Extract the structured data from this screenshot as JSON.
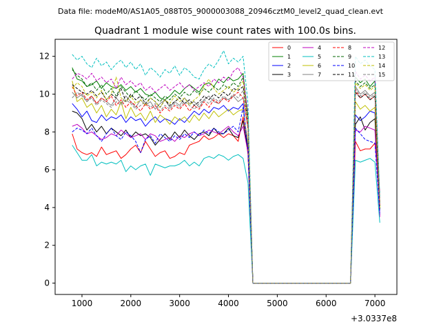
{
  "suptitle": "Data file: modeM0/AS1A05_088T05_9000003088_20946cztM0_level2_quad_clean.evt",
  "chart_data": {
    "type": "line",
    "title": "Quadrant 1 module wise count rates with 100.0s bins.",
    "xlabel": "",
    "ylabel": "",
    "offset_text": "+3.0337e8",
    "xlim": [
      450,
      7450
    ],
    "ylim": [
      -0.6,
      12.9
    ],
    "xticks": [
      1000,
      2000,
      3000,
      4000,
      5000,
      6000,
      7000
    ],
    "xtick_labels": [
      "1000",
      "2000",
      "3000",
      "4000",
      "5000",
      "6000",
      "7000"
    ],
    "yticks": [
      0,
      2,
      4,
      6,
      8,
      10,
      12
    ],
    "ytick_labels": [
      "0",
      "2",
      "4",
      "6",
      "8",
      "10",
      "12"
    ],
    "grid": false,
    "legend_position": "top-right",
    "x": [
      800,
      900,
      1000,
      1100,
      1200,
      1300,
      1400,
      1500,
      1600,
      1700,
      1800,
      1900,
      2000,
      2100,
      2200,
      2300,
      2400,
      2500,
      2600,
      2700,
      2800,
      2900,
      3000,
      3100,
      3200,
      3300,
      3400,
      3500,
      3600,
      3700,
      3800,
      3900,
      4000,
      4100,
      4200,
      4300,
      4400,
      4500,
      4600,
      6500,
      6600,
      6700,
      6800,
      6900,
      7000,
      7100
    ],
    "series": [
      {
        "name": "0",
        "color": "#ff0000",
        "dash": "solid",
        "values": [
          7.9,
          7.1,
          6.9,
          6.8,
          6.9,
          6.7,
          7.2,
          6.8,
          6.9,
          7.0,
          6.6,
          6.8,
          7.1,
          7.3,
          6.9,
          7.5,
          7.1,
          6.7,
          6.9,
          7.0,
          6.6,
          6.7,
          6.9,
          6.8,
          7.3,
          7.4,
          7.5,
          7.8,
          7.6,
          7.7,
          7.9,
          7.7,
          7.9,
          7.8,
          7.5,
          8.8,
          6.8,
          0.0,
          0.0,
          0.0,
          7.5,
          7.0,
          7.1,
          7.1,
          7.4,
          4.8
        ]
      },
      {
        "name": "1",
        "color": "#008000",
        "dash": "solid",
        "values": [
          11.4,
          10.8,
          10.7,
          10.4,
          10.5,
          10.7,
          10.3,
          10.6,
          10.4,
          10.3,
          10.5,
          10.2,
          10.4,
          10.1,
          10.3,
          10.0,
          9.9,
          10.1,
          9.8,
          9.7,
          9.9,
          10.2,
          10.0,
          10.3,
          10.5,
          10.3,
          10.1,
          10.5,
          10.6,
          10.4,
          10.8,
          10.6,
          10.9,
          10.7,
          10.8,
          11.1,
          8.7,
          0.0,
          0.0,
          0.0,
          10.9,
          10.6,
          10.8,
          10.4,
          10.7,
          4.0
        ]
      },
      {
        "name": "2",
        "color": "#0000ff",
        "dash": "solid",
        "values": [
          9.5,
          9.2,
          8.8,
          9.1,
          8.6,
          8.5,
          8.9,
          8.6,
          8.8,
          8.7,
          8.9,
          8.5,
          8.8,
          8.6,
          8.7,
          8.3,
          8.6,
          8.8,
          8.5,
          8.7,
          8.6,
          8.4,
          8.7,
          8.5,
          8.8,
          9.1,
          8.9,
          9.2,
          9.0,
          9.3,
          9.2,
          9.4,
          9.1,
          9.3,
          9.2,
          9.5,
          7.0,
          0.0,
          0.0,
          0.0,
          8.9,
          8.6,
          8.8,
          9.1,
          9.0,
          3.6
        ]
      },
      {
        "name": "3",
        "color": "#000000",
        "dash": "solid",
        "values": [
          9.1,
          9.0,
          8.7,
          8.1,
          8.4,
          8.0,
          8.3,
          7.9,
          8.2,
          8.0,
          7.8,
          8.1,
          7.7,
          8.0,
          7.8,
          7.9,
          7.7,
          7.3,
          7.6,
          7.9,
          7.6,
          8.0,
          7.7,
          8.1,
          7.8,
          7.6,
          7.9,
          8.0,
          7.8,
          8.2,
          7.9,
          7.9,
          8.2,
          7.8,
          7.7,
          8.6,
          7.0,
          0.0,
          0.0,
          0.0,
          8.4,
          8.8,
          8.1,
          8.5,
          8.7,
          3.9
        ]
      },
      {
        "name": "4",
        "color": "#bf00bf",
        "dash": "solid",
        "values": [
          8.3,
          8.4,
          8.2,
          7.9,
          8.0,
          7.8,
          7.6,
          7.7,
          7.9,
          7.8,
          8.1,
          7.9,
          7.7,
          7.8,
          7.9,
          7.6,
          7.9,
          7.8,
          7.5,
          7.6,
          7.7,
          7.5,
          7.8,
          7.7,
          7.9,
          8.0,
          7.8,
          7.9,
          8.1,
          8.0,
          7.9,
          8.1,
          8.3,
          8.0,
          7.8,
          8.3,
          6.9,
          0.0,
          0.0,
          0.0,
          8.1,
          8.0,
          8.3,
          8.2,
          8.1,
          3.5
        ]
      },
      {
        "name": "5",
        "color": "#00bfbf",
        "dash": "solid",
        "values": [
          7.3,
          6.9,
          6.5,
          6.5,
          6.8,
          6.2,
          6.4,
          6.3,
          6.4,
          6.3,
          6.5,
          5.9,
          6.2,
          6.0,
          6.2,
          6.3,
          5.7,
          6.3,
          6.2,
          6.1,
          6.2,
          6.2,
          6.3,
          6.5,
          6.2,
          6.4,
          6.2,
          6.6,
          6.7,
          6.6,
          6.8,
          6.7,
          6.5,
          6.7,
          6.8,
          6.6,
          5.3,
          0.0,
          0.0,
          0.0,
          6.5,
          6.4,
          6.5,
          6.6,
          6.4,
          3.2
        ]
      },
      {
        "name": "6",
        "color": "#bfbf00",
        "dash": "solid",
        "values": [
          10.7,
          9.6,
          9.8,
          9.3,
          9.5,
          9.0,
          9.4,
          8.8,
          9.2,
          8.9,
          9.6,
          8.7,
          9.3,
          8.8,
          9.0,
          8.6,
          9.1,
          8.5,
          8.9,
          8.7,
          8.4,
          8.8,
          8.6,
          8.8,
          8.5,
          8.9,
          8.6,
          9.0,
          8.7,
          9.1,
          8.8,
          9.0,
          9.2,
          8.9,
          9.1,
          9.2,
          7.4,
          0.0,
          0.0,
          0.0,
          9.6,
          9.2,
          9.4,
          9.1,
          9.3,
          4.0
        ]
      },
      {
        "name": "7",
        "color": "#808080",
        "dash": "solid",
        "values": [
          10.1,
          9.8,
          10.0,
          9.6,
          9.9,
          9.5,
          9.8,
          9.6,
          9.4,
          9.8,
          9.5,
          9.9,
          9.6,
          9.3,
          9.7,
          9.4,
          9.6,
          9.2,
          9.5,
          9.7,
          9.3,
          9.6,
          9.4,
          9.8,
          9.5,
          9.6,
          9.3,
          9.7,
          9.9,
          9.6,
          9.5,
          9.8,
          9.7,
          9.9,
          9.6,
          9.8,
          8.2,
          0.0,
          0.0,
          0.0,
          10.4,
          10.0,
          10.2,
          9.9,
          10.1,
          4.3
        ]
      },
      {
        "name": "8",
        "color": "#ff0000",
        "dash": "dashed",
        "values": [
          10.4,
          9.9,
          10.1,
          9.7,
          9.9,
          9.5,
          9.8,
          9.6,
          9.9,
          9.4,
          9.7,
          9.3,
          9.6,
          9.4,
          9.1,
          9.5,
          9.2,
          9.4,
          9.0,
          9.3,
          9.1,
          9.4,
          9.2,
          9.5,
          9.1,
          9.4,
          9.2,
          9.6,
          9.3,
          9.7,
          9.5,
          9.8,
          9.6,
          9.9,
          10.1,
          9.8,
          8.2,
          0.0,
          0.0,
          0.0,
          10.2,
          9.8,
          10.0,
          9.7,
          9.9,
          4.1
        ]
      },
      {
        "name": "9",
        "color": "#006400",
        "dash": "dashed",
        "values": [
          11.3,
          11.0,
          10.8,
          10.4,
          10.6,
          10.2,
          10.5,
          10.0,
          10.3,
          9.9,
          10.4,
          10.1,
          9.8,
          10.2,
          9.9,
          9.7,
          10.0,
          9.8,
          9.6,
          9.9,
          9.7,
          10.0,
          9.8,
          10.1,
          9.9,
          10.2,
          10.0,
          10.3,
          10.1,
          10.4,
          10.2,
          10.5,
          10.3,
          10.6,
          10.4,
          10.9,
          8.8,
          0.0,
          0.0,
          0.0,
          10.7,
          10.4,
          10.6,
          10.3,
          10.5,
          4.2
        ]
      },
      {
        "name": "10",
        "color": "#0000ff",
        "dash": "dashed",
        "values": [
          8.0,
          8.2,
          8.1,
          7.9,
          8.2,
          7.8,
          7.5,
          7.9,
          8.2,
          7.8,
          7.6,
          8.0,
          7.8,
          7.5,
          6.9,
          7.6,
          7.8,
          7.4,
          7.9,
          7.7,
          7.5,
          7.8,
          7.6,
          7.9,
          7.7,
          8.0,
          7.8,
          8.1,
          7.9,
          8.2,
          8.0,
          7.9,
          8.1,
          8.3,
          8.0,
          9.3,
          7.1,
          0.0,
          0.0,
          0.0,
          8.2,
          7.9,
          7.6,
          7.5,
          7.4,
          3.7
        ]
      },
      {
        "name": "11",
        "color": "#000000",
        "dash": "dashed",
        "values": [
          10.5,
          10.3,
          10.1,
          10.0,
          10.2,
          9.9,
          10.1,
          9.7,
          10.0,
          9.8,
          10.3,
          9.6,
          10.0,
          9.7,
          9.9,
          9.5,
          9.8,
          9.6,
          9.3,
          9.7,
          9.4,
          9.6,
          9.8,
          9.5,
          9.7,
          9.4,
          9.6,
          9.9,
          9.7,
          10.0,
          9.8,
          10.1,
          9.9,
          10.3,
          10.2,
          10.4,
          8.5,
          0.0,
          0.0,
          0.0,
          10.1,
          9.8,
          10.0,
          9.7,
          9.9,
          4.1
        ]
      },
      {
        "name": "12",
        "color": "#bf00bf",
        "dash": "dashed",
        "values": [
          10.8,
          11.1,
          11.0,
          10.8,
          11.1,
          10.7,
          10.9,
          10.6,
          10.8,
          10.3,
          10.9,
          10.5,
          10.7,
          10.4,
          10.6,
          10.2,
          10.4,
          10.1,
          10.3,
          10.5,
          10.2,
          10.4,
          10.6,
          10.3,
          10.5,
          10.2,
          10.4,
          10.6,
          10.4,
          10.8,
          10.6,
          10.9,
          10.7,
          11.2,
          11.4,
          10.9,
          9.0,
          0.0,
          0.0,
          0.0,
          11.2,
          10.8,
          11.0,
          10.7,
          10.9,
          4.5
        ]
      },
      {
        "name": "13",
        "color": "#00bfbf",
        "dash": "dashed",
        "values": [
          12.1,
          11.8,
          12.0,
          11.6,
          11.4,
          11.9,
          11.5,
          11.7,
          11.3,
          11.6,
          11.8,
          11.4,
          11.7,
          11.3,
          11.6,
          11.0,
          11.4,
          11.2,
          10.9,
          11.3,
          11.1,
          11.5,
          11.0,
          11.4,
          11.2,
          10.9,
          10.8,
          11.3,
          11.6,
          11.4,
          11.8,
          12.3,
          11.6,
          11.9,
          11.7,
          12.0,
          9.5,
          0.0,
          0.0,
          0.0,
          12.0,
          11.6,
          11.8,
          11.5,
          11.3,
          4.6
        ]
      },
      {
        "name": "14",
        "color": "#bfbf00",
        "dash": "dashed",
        "values": [
          10.3,
          10.6,
          10.4,
          9.9,
          10.1,
          9.8,
          10.2,
          9.7,
          10.0,
          10.9,
          9.8,
          9.6,
          9.9,
          9.5,
          9.7,
          9.4,
          9.8,
          9.6,
          9.3,
          9.7,
          9.5,
          9.9,
          9.6,
          9.8,
          9.4,
          9.7,
          9.9,
          10.4,
          10.8,
          10.3,
          10.0,
          10.2,
          10.4,
          10.1,
          10.3,
          10.7,
          8.6,
          0.0,
          0.0,
          0.0,
          10.6,
          10.3,
          10.5,
          10.2,
          10.4,
          4.3
        ]
      },
      {
        "name": "15",
        "color": "#808080",
        "dash": "dashed",
        "values": [
          9.8,
          10.1,
          9.9,
          9.6,
          9.8,
          9.4,
          9.7,
          9.5,
          9.3,
          9.6,
          9.4,
          9.7,
          9.5,
          9.2,
          9.4,
          9.6,
          9.3,
          9.5,
          9.1,
          9.4,
          9.2,
          9.5,
          9.3,
          9.6,
          9.4,
          9.2,
          9.5,
          9.7,
          9.5,
          9.8,
          9.6,
          9.9,
          9.7,
          10.0,
          9.8,
          10.2,
          8.4,
          0.0,
          0.0,
          0.0,
          10.3,
          9.9,
          10.1,
          9.8,
          10.0,
          4.2
        ]
      }
    ]
  }
}
